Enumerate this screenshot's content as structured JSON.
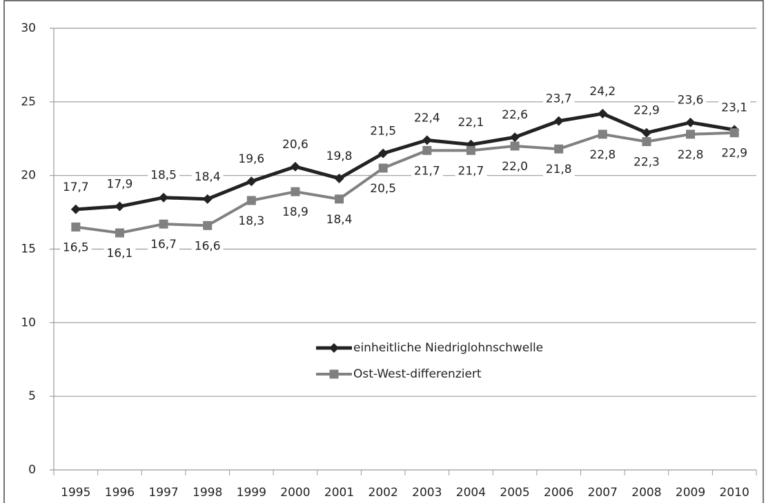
{
  "chart_data": {
    "type": "line",
    "categories": [
      "1995",
      "1996",
      "1997",
      "1998",
      "1999",
      "2000",
      "2001",
      "2002",
      "2003",
      "2004",
      "2005",
      "2006",
      "2007",
      "2008",
      "2009",
      "2010"
    ],
    "series": [
      {
        "name": "einheitliche Niedriglohnschwelle",
        "color": "#222222",
        "marker": "diamond",
        "values": [
          17.7,
          17.9,
          18.5,
          18.4,
          19.6,
          20.6,
          19.8,
          21.5,
          22.4,
          22.1,
          22.6,
          23.7,
          24.2,
          22.9,
          23.6,
          23.1
        ],
        "value_labels": [
          "17,7",
          "17,9",
          "18,5",
          "18,4",
          "19,6",
          "20,6",
          "19,8",
          "21,5",
          "22,4",
          "22,1",
          "22,6",
          "23,7",
          "24,2",
          "22,9",
          "23,6",
          "23,1"
        ]
      },
      {
        "name": "Ost-West-differenziert",
        "color": "#808080",
        "marker": "square",
        "values": [
          16.5,
          16.1,
          16.7,
          16.6,
          18.3,
          18.9,
          18.4,
          20.5,
          21.7,
          21.7,
          22.0,
          21.8,
          22.8,
          22.3,
          22.8,
          22.9
        ],
        "value_labels": [
          "16,5",
          "16,1",
          "16,7",
          "16,6",
          "18,3",
          "18,9",
          "18,4",
          "20,5",
          "21,7",
          "21,7",
          "22,0",
          "21,8",
          "22,8",
          "22,3",
          "22,8",
          "22,9"
        ]
      }
    ],
    "ylim": [
      0,
      30
    ],
    "yticks": [
      0,
      5,
      10,
      15,
      20,
      25,
      30
    ],
    "grid": true
  }
}
